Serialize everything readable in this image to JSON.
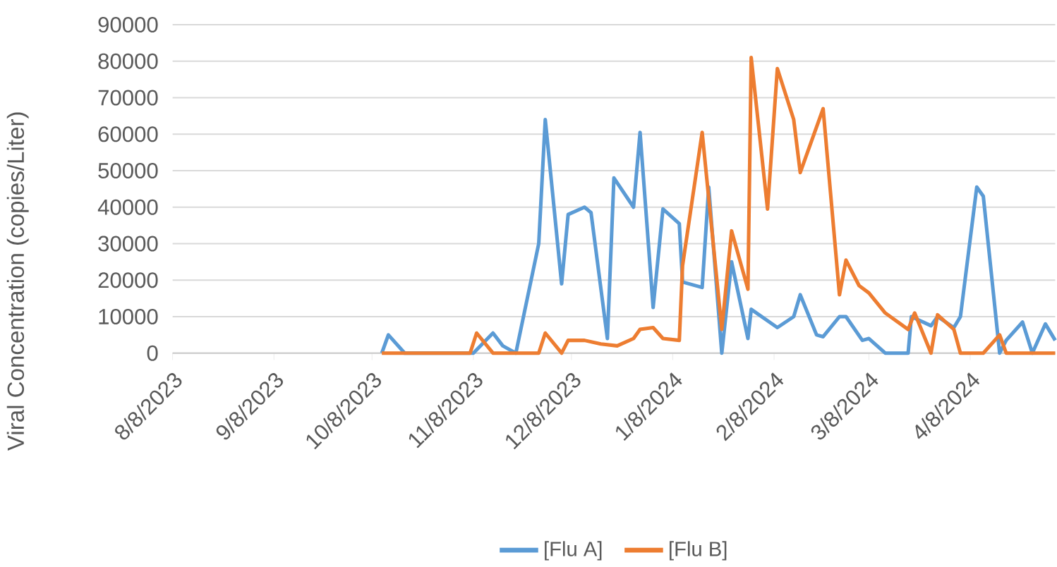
{
  "chart_data": {
    "type": "line",
    "ylabel": "Viral Concentration (copies/Liter)",
    "xlim": [
      "2023-08-08",
      "2024-05-04"
    ],
    "ylim": [
      0,
      90000
    ],
    "xticks": [
      {
        "value": "2023-08-08",
        "label": "8/8/2023"
      },
      {
        "value": "2023-09-08",
        "label": "9/8/2023"
      },
      {
        "value": "2023-10-08",
        "label": "10/8/2023"
      },
      {
        "value": "2023-11-08",
        "label": "11/8/2023"
      },
      {
        "value": "2023-12-08",
        "label": "12/8/2023"
      },
      {
        "value": "2024-01-08",
        "label": "1/8/2024"
      },
      {
        "value": "2024-02-08",
        "label": "2/8/2024"
      },
      {
        "value": "2024-03-08",
        "label": "3/8/2024"
      },
      {
        "value": "2024-04-08",
        "label": "4/8/2024"
      }
    ],
    "yticks": [
      0,
      10000,
      20000,
      30000,
      40000,
      50000,
      60000,
      70000,
      80000,
      90000
    ],
    "grid": "y",
    "legend": "bottom",
    "marker": "none",
    "line_style": "solid",
    "series": [
      {
        "name": "[Flu A]",
        "color": "#5b9bd5",
        "x": [
          "2023-10-11",
          "2023-10-13",
          "2023-10-18",
          "2023-11-08",
          "2023-11-14",
          "2023-11-17",
          "2023-11-21",
          "2023-11-28",
          "2023-11-30",
          "2023-12-05",
          "2023-12-07",
          "2023-12-12",
          "2023-12-14",
          "2023-12-19",
          "2023-12-21",
          "2023-12-27",
          "2023-12-29",
          "2024-01-02",
          "2024-01-05",
          "2024-01-10",
          "2024-01-11",
          "2024-01-17",
          "2024-01-19",
          "2024-01-23",
          "2024-01-26",
          "2024-01-31",
          "2024-02-01",
          "2024-02-09",
          "2024-02-14",
          "2024-02-16",
          "2024-02-21",
          "2024-02-23",
          "2024-02-28",
          "2024-03-01",
          "2024-03-06",
          "2024-03-08",
          "2024-03-13",
          "2024-03-20",
          "2024-03-21",
          "2024-03-27",
          "2024-03-29",
          "2024-04-03",
          "2024-04-05",
          "2024-04-10",
          "2024-04-12",
          "2024-04-17",
          "2024-04-19",
          "2024-04-24",
          "2024-04-27",
          "2024-05-01",
          "2024-05-04"
        ],
        "values": [
          0,
          5000,
          0,
          0,
          5500,
          2000,
          0,
          30000,
          64000,
          19000,
          38000,
          40000,
          38500,
          4000,
          48000,
          40000,
          60500,
          12500,
          39500,
          35500,
          19500,
          18000,
          45500,
          0,
          25000,
          4000,
          12000,
          7000,
          10000,
          16000,
          5000,
          4500,
          10000,
          10000,
          3500,
          4000,
          0,
          0,
          10000,
          7500,
          10000,
          7000,
          10000,
          45500,
          43000,
          0,
          3500,
          8500,
          0,
          8000,
          3500
        ]
      },
      {
        "name": "[Flu B]",
        "color": "#ed7d31",
        "x": [
          "2023-10-11",
          "2023-11-07",
          "2023-11-09",
          "2023-11-14",
          "2023-11-28",
          "2023-11-30",
          "2023-12-05",
          "2023-12-07",
          "2023-12-12",
          "2023-12-17",
          "2023-12-22",
          "2023-12-27",
          "2023-12-29",
          "2024-01-02",
          "2024-01-05",
          "2024-01-10",
          "2024-01-11",
          "2024-01-17",
          "2024-01-23",
          "2024-01-26",
          "2024-01-31",
          "2024-02-01",
          "2024-02-06",
          "2024-02-09",
          "2024-02-14",
          "2024-02-16",
          "2024-02-23",
          "2024-02-28",
          "2024-03-01",
          "2024-03-05",
          "2024-03-08",
          "2024-03-13",
          "2024-03-20",
          "2024-03-22",
          "2024-03-27",
          "2024-03-29",
          "2024-04-03",
          "2024-04-05",
          "2024-04-12",
          "2024-04-17",
          "2024-04-19",
          "2024-05-04"
        ],
        "values": [
          0,
          0,
          5500,
          0,
          0,
          5500,
          0,
          3500,
          3500,
          2500,
          2000,
          4000,
          6500,
          7000,
          4000,
          3500,
          24000,
          60500,
          6500,
          33500,
          17500,
          81000,
          39500,
          78000,
          64000,
          49500,
          67000,
          16000,
          25500,
          18500,
          16500,
          11000,
          6500,
          11000,
          0,
          10500,
          6500,
          0,
          0,
          5000,
          0,
          0
        ]
      }
    ]
  }
}
